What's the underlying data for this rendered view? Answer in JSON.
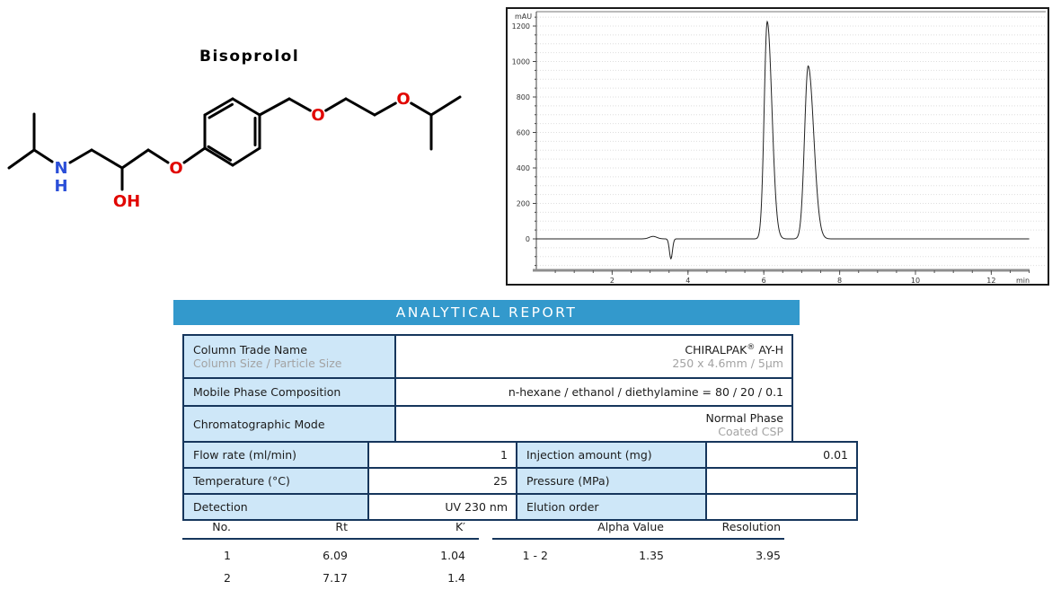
{
  "molecule": {
    "title": "Bisoprolol",
    "atoms": {
      "n": "N",
      "h": "H",
      "oh": "OH",
      "o_aryl": "O",
      "o_ether1": "O",
      "o_ether2": "O"
    },
    "colors": {
      "nitrogen": "#2b4fd8",
      "oxygen": "#e10600",
      "bond": "#000000"
    }
  },
  "chart_data": {
    "type": "line",
    "title": "",
    "xlabel": "min",
    "ylabel": "mAU",
    "xlim": [
      0,
      13.2
    ],
    "ylim": [
      -180,
      1290
    ],
    "x_ticks": [
      2,
      4,
      6,
      8,
      10,
      12
    ],
    "y_ticks": [
      0,
      200,
      400,
      600,
      800,
      1000,
      1200
    ],
    "grid": "dotted-horizontal",
    "baseline_mau": 0,
    "trace_color": "#222222",
    "features": [
      {
        "kind": "bump",
        "center_min": 3.08,
        "height_mau": 14,
        "sigma_min": 0.1
      },
      {
        "kind": "dip",
        "center_min": 3.55,
        "height_mau": -112,
        "sigma_min": 0.04
      },
      {
        "kind": "peak",
        "center_min": 6.09,
        "height_mau": 1225,
        "sigma_min": 0.08
      },
      {
        "kind": "peak",
        "center_min": 7.17,
        "height_mau": 975,
        "sigma_min": 0.095
      }
    ]
  },
  "report": {
    "header": {
      "label": "ANALYTICAL REPORT",
      "bg": "#3399cc"
    },
    "table1": {
      "rows": [
        {
          "label": "Column Trade Name",
          "sublabel": "Column Size / Particle Size",
          "value_brand": "CHIRALPAK",
          "value_reg": "®",
          "value_suffix": " AY-H",
          "subvalue": "250 x 4.6mm / 5µm"
        },
        {
          "label": "Mobile Phase Composition",
          "value": "n-hexane / ethanol / diethylamine = 80 / 20 / 0.1"
        },
        {
          "label": "Chromatographic Mode",
          "value": "Normal Phase",
          "subvalue": "Coated CSP"
        }
      ]
    },
    "table2": {
      "rows": [
        {
          "label1": "Flow rate (ml/min)",
          "value1": "1",
          "label2": "Injection amount (mg)",
          "value2": "0.01"
        },
        {
          "label1": "Temperature (°C)",
          "value1": "25",
          "label2": "Pressure (MPa)",
          "value2": ""
        },
        {
          "label1": "Detection",
          "value1": "UV 230 nm",
          "label2": "Elution order",
          "value2": ""
        }
      ]
    },
    "results": {
      "left": {
        "headers": [
          "No.",
          "Rt",
          "K′"
        ],
        "rows": [
          [
            "1",
            "6.09",
            "1.04"
          ],
          [
            "2",
            "7.17",
            "1.4"
          ]
        ]
      },
      "right": {
        "headers": [
          "",
          "Alpha Value",
          "Resolution"
        ],
        "rows": [
          [
            "1 - 2",
            "1.35",
            "3.95"
          ]
        ]
      }
    }
  }
}
